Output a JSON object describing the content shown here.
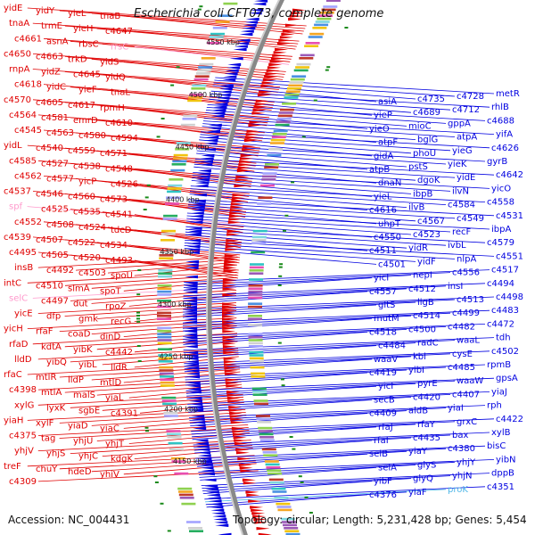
{
  "title": "Escherichia coli CFT073, complete genome",
  "footer": {
    "accession": "Accession: NC_004431",
    "summary": "Topology: circular; Length: 5,231,428 bp; Genes: 5,454"
  },
  "colors": {
    "forward": "#e00000",
    "reverse": "#0000e0",
    "rna": "#ff99cc",
    "cyan": "#4fb7e8",
    "backbone": "#888888",
    "tick": "#1a8a1a"
  },
  "scale_labels": [
    "4550 kbp",
    "4500 kbp",
    "4450 kbp",
    "4400 kbp",
    "4350 kbp",
    "4300 kbp",
    "4250 kbp",
    "4200 kbp",
    "4150 kbp"
  ],
  "left_genes": [
    {
      "label": "yidE",
      "color": "red"
    },
    {
      "label": "yidY",
      "color": "red"
    },
    {
      "label": "yieL",
      "color": "red"
    },
    {
      "label": "tnaB",
      "color": "red"
    },
    {
      "label": "tnaA",
      "color": "red"
    },
    {
      "label": "trmE",
      "color": "red"
    },
    {
      "label": "yieH",
      "color": "red"
    },
    {
      "label": "c4647",
      "color": "red"
    },
    {
      "label": "c4661",
      "color": "red"
    },
    {
      "label": "asnA",
      "color": "red"
    },
    {
      "label": "rbsC",
      "color": "red"
    },
    {
      "label": "rrsC",
      "color": "pink"
    },
    {
      "label": "c4650",
      "color": "red"
    },
    {
      "label": "c4663",
      "color": "red"
    },
    {
      "label": "trkD",
      "color": "red"
    },
    {
      "label": "yidS",
      "color": "red"
    },
    {
      "label": "rnpA",
      "color": "red"
    },
    {
      "label": "yidZ",
      "color": "red"
    },
    {
      "label": "c4645",
      "color": "red"
    },
    {
      "label": "yidQ",
      "color": "red"
    },
    {
      "label": "c4618",
      "color": "red"
    },
    {
      "label": "yidC",
      "color": "red"
    },
    {
      "label": "yieF",
      "color": "red"
    },
    {
      "label": "tnaL",
      "color": "red"
    },
    {
      "label": "c4570",
      "color": "red"
    },
    {
      "label": "c4605",
      "color": "red"
    },
    {
      "label": "c4617",
      "color": "red"
    },
    {
      "label": "rpmH",
      "color": "red"
    },
    {
      "label": "c4564",
      "color": "red"
    },
    {
      "label": "c4581",
      "color": "red"
    },
    {
      "label": "emrD",
      "color": "red"
    },
    {
      "label": "c4610",
      "color": "red"
    },
    {
      "label": "c4545",
      "color": "red"
    },
    {
      "label": "c4563",
      "color": "red"
    },
    {
      "label": "c4580",
      "color": "red"
    },
    {
      "label": "c4594",
      "color": "red"
    },
    {
      "label": "yidL",
      "color": "red"
    },
    {
      "label": "c4540",
      "color": "red"
    },
    {
      "label": "c4559",
      "color": "red"
    },
    {
      "label": "c4571",
      "color": "red"
    },
    {
      "label": "c4585",
      "color": "red"
    },
    {
      "label": "c4527",
      "color": "red"
    },
    {
      "label": "c4538",
      "color": "red"
    },
    {
      "label": "c4548",
      "color": "red"
    },
    {
      "label": "c4562",
      "color": "red"
    },
    {
      "label": "c4577",
      "color": "red"
    },
    {
      "label": "yicP",
      "color": "red"
    },
    {
      "label": "c4526",
      "color": "red"
    },
    {
      "label": "c4537",
      "color": "red"
    },
    {
      "label": "c4546",
      "color": "red"
    },
    {
      "label": "c4560",
      "color": "red"
    },
    {
      "label": "c4573",
      "color": "red"
    },
    {
      "label": "spf",
      "color": "pink"
    },
    {
      "label": "c4525",
      "color": "red"
    },
    {
      "label": "c4535",
      "color": "red"
    },
    {
      "label": "c4541",
      "color": "red"
    },
    {
      "label": "c4552",
      "color": "red"
    },
    {
      "label": "c4508",
      "color": "red"
    },
    {
      "label": "c4524",
      "color": "red"
    },
    {
      "label": "tdcD",
      "color": "red"
    },
    {
      "label": "c4539",
      "color": "red"
    },
    {
      "label": "c4507",
      "color": "red"
    },
    {
      "label": "c4522",
      "color": "red"
    },
    {
      "label": "c4534",
      "color": "red"
    },
    {
      "label": "c4495",
      "color": "red"
    },
    {
      "label": "c4505",
      "color": "red"
    },
    {
      "label": "c4520",
      "color": "red"
    },
    {
      "label": "c4493",
      "color": "red"
    },
    {
      "label": "insB",
      "color": "red"
    },
    {
      "label": "c4492",
      "color": "red"
    },
    {
      "label": "c4503",
      "color": "red"
    },
    {
      "label": "spoU",
      "color": "red"
    },
    {
      "label": "intC",
      "color": "red"
    },
    {
      "label": "c4510",
      "color": "red"
    },
    {
      "label": "slmA",
      "color": "red"
    },
    {
      "label": "spoT",
      "color": "red"
    },
    {
      "label": "selC",
      "color": "pink"
    },
    {
      "label": "c4497",
      "color": "red"
    },
    {
      "label": "dut",
      "color": "red"
    },
    {
      "label": "rpoZ",
      "color": "red"
    },
    {
      "label": "yicE",
      "color": "red"
    },
    {
      "label": "dfp",
      "color": "red"
    },
    {
      "label": "gmk",
      "color": "red"
    },
    {
      "label": "recG",
      "color": "red"
    },
    {
      "label": "yicH",
      "color": "red"
    },
    {
      "label": "rfaF",
      "color": "red"
    },
    {
      "label": "coaD",
      "color": "red"
    },
    {
      "label": "dinD",
      "color": "red"
    },
    {
      "label": "rfaD",
      "color": "red"
    },
    {
      "label": "kdtA",
      "color": "red"
    },
    {
      "label": "yibK",
      "color": "red"
    },
    {
      "label": "c4442",
      "color": "red"
    },
    {
      "label": "lldD",
      "color": "red"
    },
    {
      "label": "yibQ",
      "color": "red"
    },
    {
      "label": "yibL",
      "color": "red"
    },
    {
      "label": "lldR",
      "color": "red"
    },
    {
      "label": "rfaC",
      "color": "red"
    },
    {
      "label": "mtlR",
      "color": "red"
    },
    {
      "label": "lldP",
      "color": "red"
    },
    {
      "label": "mtlD",
      "color": "red"
    },
    {
      "label": "c4398",
      "color": "red"
    },
    {
      "label": "mtlA",
      "color": "red"
    },
    {
      "label": "malS",
      "color": "red"
    },
    {
      "label": "yiaL",
      "color": "red"
    },
    {
      "label": "xylG",
      "color": "red"
    },
    {
      "label": "lyxK",
      "color": "red"
    },
    {
      "label": "sgbE",
      "color": "red"
    },
    {
      "label": "c4391",
      "color": "red"
    },
    {
      "label": "yiaH",
      "color": "red"
    },
    {
      "label": "xylF",
      "color": "red"
    },
    {
      "label": "yiaD",
      "color": "red"
    },
    {
      "label": "yiaC",
      "color": "red"
    },
    {
      "label": "c4375",
      "color": "red"
    },
    {
      "label": "tag",
      "color": "red"
    },
    {
      "label": "yhjU",
      "color": "red"
    },
    {
      "label": "yhjT",
      "color": "red"
    },
    {
      "label": "yhjV",
      "color": "red"
    },
    {
      "label": "yhjS",
      "color": "red"
    },
    {
      "label": "yhjC",
      "color": "red"
    },
    {
      "label": "kdgK",
      "color": "red"
    },
    {
      "label": "treF",
      "color": "red"
    },
    {
      "label": "chuY",
      "color": "red"
    },
    {
      "label": "hdeD",
      "color": "red"
    },
    {
      "label": "yhiV",
      "color": "red"
    },
    {
      "label": "c4309",
      "color": "red"
    }
  ],
  "right_genes": [
    {
      "label": "metR",
      "color": "blue"
    },
    {
      "label": "c4728",
      "color": "blue"
    },
    {
      "label": "c4735",
      "color": "blue"
    },
    {
      "label": "asiA",
      "color": "blue"
    },
    {
      "label": "rhlB",
      "color": "blue"
    },
    {
      "label": "c4712",
      "color": "blue"
    },
    {
      "label": "c4689",
      "color": "blue"
    },
    {
      "label": "yieP",
      "color": "blue"
    },
    {
      "label": "c4688",
      "color": "blue"
    },
    {
      "label": "gppA",
      "color": "blue"
    },
    {
      "label": "mioC",
      "color": "blue"
    },
    {
      "label": "yieO",
      "color": "blue"
    },
    {
      "label": "yifA",
      "color": "blue"
    },
    {
      "label": "atpA",
      "color": "blue"
    },
    {
      "label": "bglG",
      "color": "blue"
    },
    {
      "label": "atpF",
      "color": "blue"
    },
    {
      "label": "c4626",
      "color": "blue"
    },
    {
      "label": "yieG",
      "color": "blue"
    },
    {
      "label": "phoU",
      "color": "blue"
    },
    {
      "label": "gidA",
      "color": "blue"
    },
    {
      "label": "gyrB",
      "color": "blue"
    },
    {
      "label": "yieK",
      "color": "blue"
    },
    {
      "label": "pstS",
      "color": "blue"
    },
    {
      "label": "atpB",
      "color": "blue"
    },
    {
      "label": "c4642",
      "color": "blue"
    },
    {
      "label": "yidE",
      "color": "blue"
    },
    {
      "label": "dgoK",
      "color": "blue"
    },
    {
      "label": "dnaN",
      "color": "blue"
    },
    {
      "label": "yicO",
      "color": "blue"
    },
    {
      "label": "ilvN",
      "color": "blue"
    },
    {
      "label": "ibpB",
      "color": "blue"
    },
    {
      "label": "yieL",
      "color": "blue"
    },
    {
      "label": "c4558",
      "color": "blue"
    },
    {
      "label": "c4584",
      "color": "blue"
    },
    {
      "label": "ilvB",
      "color": "blue"
    },
    {
      "label": "c4616",
      "color": "blue"
    },
    {
      "label": "c4531",
      "color": "blue"
    },
    {
      "label": "c4549",
      "color": "blue"
    },
    {
      "label": "c4567",
      "color": "blue"
    },
    {
      "label": "uhpT",
      "color": "blue"
    },
    {
      "label": "ibpA",
      "color": "blue"
    },
    {
      "label": "recF",
      "color": "blue"
    },
    {
      "label": "c4523",
      "color": "blue"
    },
    {
      "label": "c4550",
      "color": "blue"
    },
    {
      "label": "c4579",
      "color": "blue"
    },
    {
      "label": "ivbL",
      "color": "blue"
    },
    {
      "label": "yidR",
      "color": "blue"
    },
    {
      "label": "c4511",
      "color": "blue"
    },
    {
      "label": "c4551",
      "color": "blue"
    },
    {
      "label": "nlpA",
      "color": "blue"
    },
    {
      "label": "yidF",
      "color": "blue"
    },
    {
      "label": "c4501",
      "color": "blue"
    },
    {
      "label": "c4517",
      "color": "blue"
    },
    {
      "label": "c4556",
      "color": "blue"
    },
    {
      "label": "nepI",
      "color": "blue"
    },
    {
      "label": "yicI",
      "color": "blue"
    },
    {
      "label": "c4494",
      "color": "blue"
    },
    {
      "label": "insI",
      "color": "blue"
    },
    {
      "label": "c4512",
      "color": "blue"
    },
    {
      "label": "c4557",
      "color": "blue"
    },
    {
      "label": "c4498",
      "color": "blue"
    },
    {
      "label": "c4513",
      "color": "blue"
    },
    {
      "label": "ligB",
      "color": "blue"
    },
    {
      "label": "gltS",
      "color": "blue"
    },
    {
      "label": "c4483",
      "color": "blue"
    },
    {
      "label": "c4499",
      "color": "blue"
    },
    {
      "label": "c4514",
      "color": "blue"
    },
    {
      "label": "mutM",
      "color": "blue"
    },
    {
      "label": "c4472",
      "color": "blue"
    },
    {
      "label": "c4482",
      "color": "blue"
    },
    {
      "label": "c4500",
      "color": "blue"
    },
    {
      "label": "c4518",
      "color": "blue"
    },
    {
      "label": "tdh",
      "color": "blue"
    },
    {
      "label": "waaL",
      "color": "blue"
    },
    {
      "label": "radC",
      "color": "blue"
    },
    {
      "label": "c4484",
      "color": "blue"
    },
    {
      "label": "c4502",
      "color": "blue"
    },
    {
      "label": "cysE",
      "color": "blue"
    },
    {
      "label": "kbl",
      "color": "blue"
    },
    {
      "label": "waaV",
      "color": "blue"
    },
    {
      "label": "rpmB",
      "color": "blue"
    },
    {
      "label": "c4485",
      "color": "blue"
    },
    {
      "label": "yibI",
      "color": "blue"
    },
    {
      "label": "c4419",
      "color": "blue"
    },
    {
      "label": "gpsA",
      "color": "blue"
    },
    {
      "label": "waaW",
      "color": "blue"
    },
    {
      "label": "pyrE",
      "color": "blue"
    },
    {
      "label": "yicI",
      "color": "blue"
    },
    {
      "label": "yiaJ",
      "color": "blue"
    },
    {
      "label": "c4407",
      "color": "blue"
    },
    {
      "label": "c4420",
      "color": "blue"
    },
    {
      "label": "secB",
      "color": "blue"
    },
    {
      "label": "rph",
      "color": "blue"
    },
    {
      "label": "yiaI",
      "color": "blue"
    },
    {
      "label": "aldB",
      "color": "blue"
    },
    {
      "label": "c4409",
      "color": "blue"
    },
    {
      "label": "c4422",
      "color": "blue"
    },
    {
      "label": "grxC",
      "color": "blue"
    },
    {
      "label": "rfaY",
      "color": "blue"
    },
    {
      "label": "rfaJ",
      "color": "blue"
    },
    {
      "label": "xylB",
      "color": "blue"
    },
    {
      "label": "bax",
      "color": "blue"
    },
    {
      "label": "c4435",
      "color": "blue"
    },
    {
      "label": "rfaI",
      "color": "blue"
    },
    {
      "label": "bisC",
      "color": "blue"
    },
    {
      "label": "c4380",
      "color": "blue"
    },
    {
      "label": "yiaY",
      "color": "blue"
    },
    {
      "label": "selB",
      "color": "blue"
    },
    {
      "label": "yibN",
      "color": "blue"
    },
    {
      "label": "yhjY",
      "color": "blue"
    },
    {
      "label": "glyS",
      "color": "blue"
    },
    {
      "label": "selA",
      "color": "blue"
    },
    {
      "label": "dppB",
      "color": "blue"
    },
    {
      "label": "yhjN",
      "color": "blue"
    },
    {
      "label": "glyQ",
      "color": "blue"
    },
    {
      "label": "yibF",
      "color": "blue"
    },
    {
      "label": "c4351",
      "color": "blue"
    },
    {
      "label": "proK",
      "color": "cyan"
    },
    {
      "label": "yiaF",
      "color": "blue"
    },
    {
      "label": "c4376",
      "color": "blue"
    }
  ]
}
